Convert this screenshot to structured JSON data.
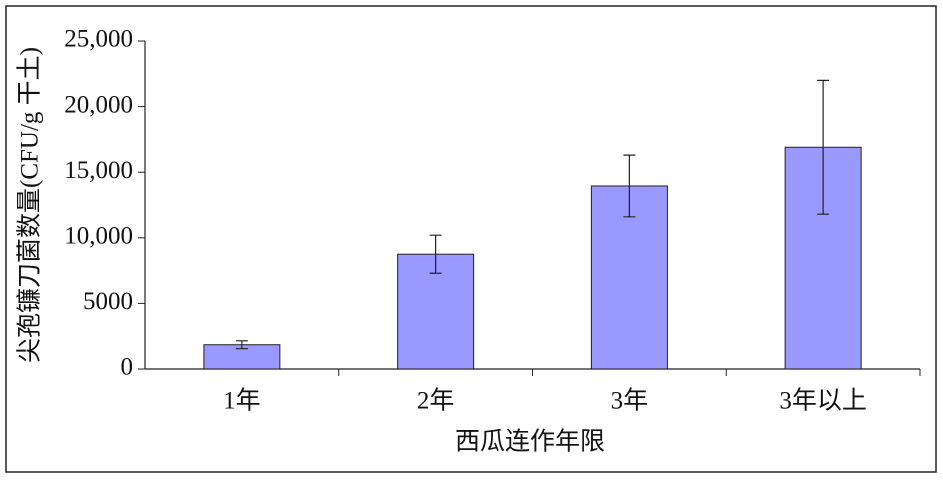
{
  "chart_data": {
    "type": "bar",
    "x_label": "西瓜连作年限",
    "y_label": "尖孢镰刀菌数量(CFU/g 干土)",
    "categories": [
      "1年",
      "2年",
      "3年",
      "3年以上"
    ],
    "values": [
      1850,
      8750,
      13950,
      16900
    ],
    "errors": [
      300,
      1450,
      2350,
      5100
    ],
    "color": "#9999ff",
    "ylim": [
      0,
      25000
    ],
    "yticks": [
      0,
      5000,
      {
        "value": 10000,
        "label": "10,000"
      },
      {
        "value": 15000,
        "label": "15,000"
      },
      {
        "value": 20000,
        "label": "20,000"
      },
      {
        "value": 25000,
        "label": "25,000"
      }
    ]
  }
}
